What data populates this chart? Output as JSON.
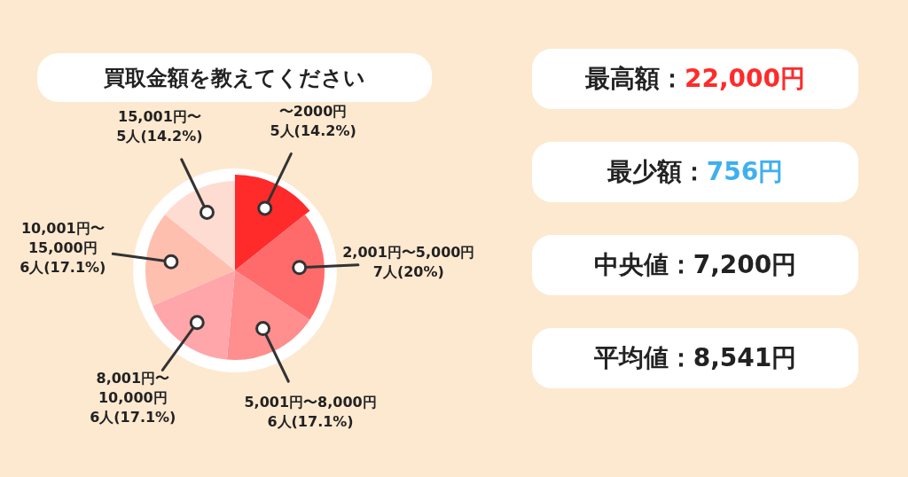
{
  "chart_data": [
    {
      "type": "pie",
      "title": "買取金額を教えてください",
      "categories": [
        "〜2000円",
        "2,001円〜5,000円",
        "5,001円〜8,000円",
        "8,001円〜10,000円",
        "10,001円〜15,000円",
        "15,001円〜"
      ],
      "values": [
        5,
        7,
        6,
        6,
        6,
        5
      ],
      "value_labels": [
        "5人(14.2%)",
        "7人(20%)",
        "6人(17.1%)",
        "6人(17.1%)",
        "6人(17.1%)",
        "5人(14.2%)"
      ],
      "colors": [
        "#ff2b2b",
        "#ff6b6b",
        "#ff8e8e",
        "#ffa6aa",
        "#ffbfae",
        "#ffdcd2"
      ],
      "legend": false
    },
    {
      "type": "other",
      "annotations": [
        "最高額：22,000円",
        "最少額：756円",
        "中央値：7,200円",
        "平均値：8,541円"
      ],
      "colors": [
        "#ff2b2b",
        "#3fb0ef",
        null,
        null
      ]
    }
  ]
}
